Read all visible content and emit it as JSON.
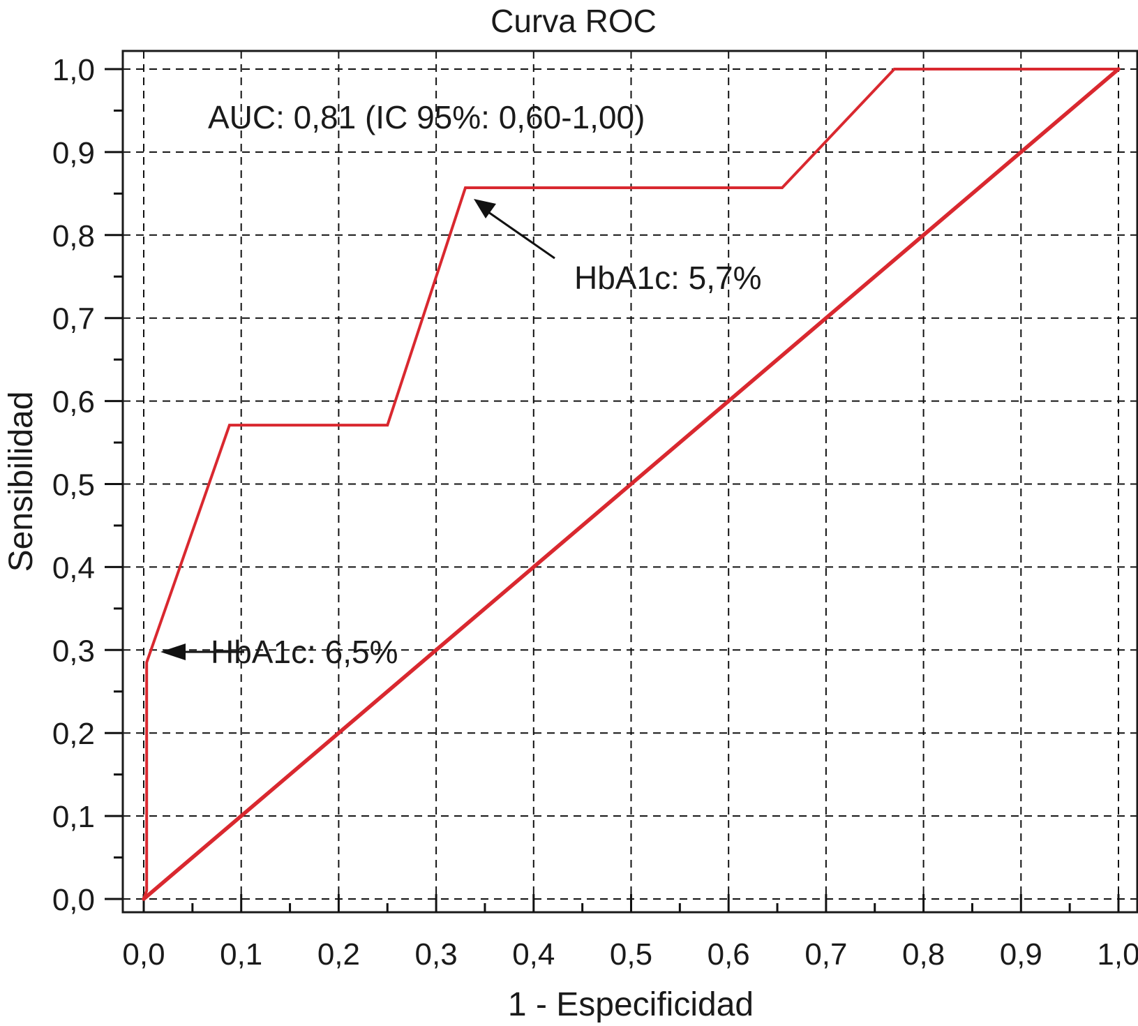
{
  "chart_data": {
    "type": "line",
    "title": "Curva ROC",
    "xlabel": "1 - Especificidad",
    "ylabel": "Sensibilidad",
    "xlim": [
      0,
      1
    ],
    "ylim": [
      0,
      1
    ],
    "x_ticks": [
      "0,0",
      "0,1",
      "0,2",
      "0,3",
      "0,4",
      "0,5",
      "0,6",
      "0,7",
      "0,8",
      "0,9",
      "1,0"
    ],
    "y_ticks": [
      "0,0",
      "0,1",
      "0,2",
      "0,3",
      "0,4",
      "0,5",
      "0,6",
      "0,7",
      "0,8",
      "0,9",
      "1,0"
    ],
    "grid": true,
    "series": [
      {
        "color": "#d9282f",
        "points": [
          {
            "x": 0.0,
            "y": 0.0
          },
          {
            "x": 0.003,
            "y": 0.01
          },
          {
            "x": 0.003,
            "y": 0.285
          },
          {
            "x": 0.088,
            "y": 0.571
          },
          {
            "x": 0.25,
            "y": 0.571
          },
          {
            "x": 0.33,
            "y": 0.857
          },
          {
            "x": 0.655,
            "y": 0.857
          },
          {
            "x": 0.77,
            "y": 1.0
          },
          {
            "x": 1.0,
            "y": 1.0
          }
        ]
      },
      {
        "color": "#d9282f",
        "points": [
          {
            "x": 0.0,
            "y": 0.0
          },
          {
            "x": 1.0,
            "y": 1.0
          }
        ]
      }
    ],
    "annotations": [
      {
        "text": "AUC: 0,81 (IC 95%: 0,60-1,00)"
      },
      {
        "text": "HbA1c: 5,7%",
        "arrow_to": {
          "x": 0.33,
          "y": 0.857
        }
      },
      {
        "text": "HbA1c: 6,5%",
        "arrow_to": {
          "x": 0.003,
          "y": 0.297
        }
      }
    ]
  }
}
